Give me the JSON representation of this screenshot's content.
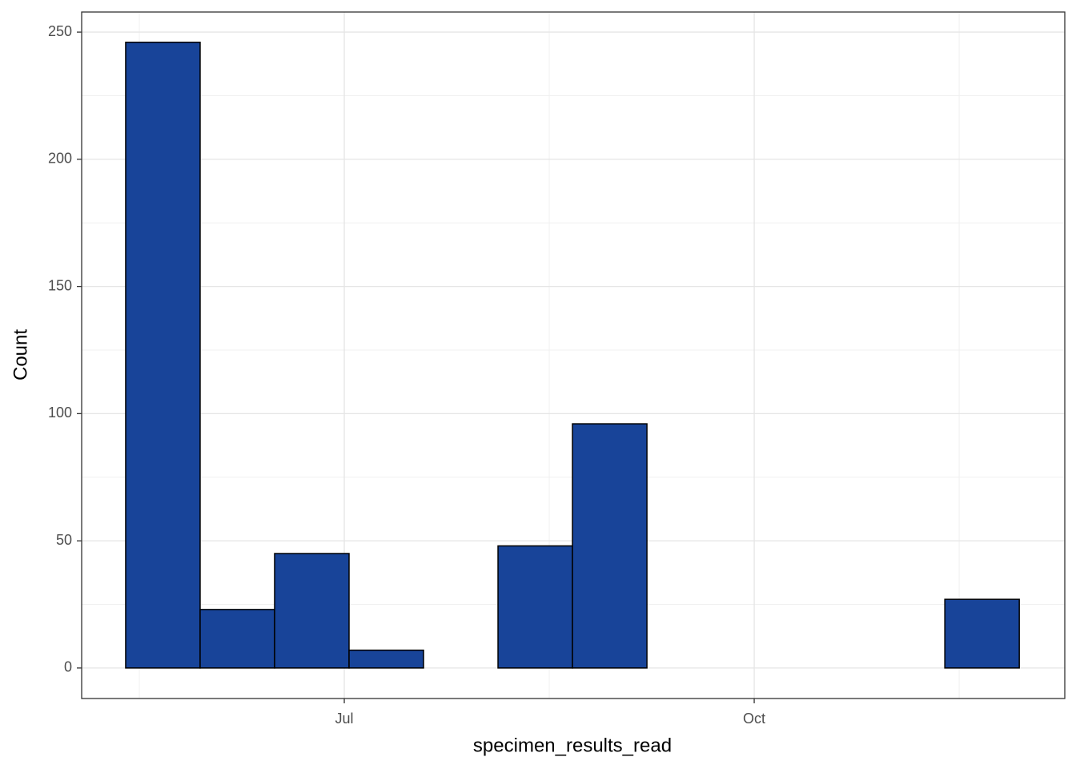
{
  "chart_data": {
    "type": "histogram",
    "x_label": "specimen_results_read",
    "y_label": "Count",
    "bins": [
      5.4,
      5.945,
      6.49,
      7.035,
      7.58,
      8.125,
      8.67,
      9.215,
      9.76,
      10.305,
      10.85,
      11.395,
      11.94
    ],
    "values": [
      246,
      23,
      45,
      7,
      0,
      48,
      96,
      0,
      0,
      0,
      0,
      27
    ],
    "color": "#184499",
    "edge_color": "#000000",
    "xlim": [
      5.078,
      12.273
    ],
    "ylim": [
      -12.0,
      257.9
    ],
    "xticks": [
      {
        "value": 7,
        "label": "Jul"
      },
      {
        "value": 10,
        "label": "Oct"
      }
    ],
    "yticks": [
      0,
      50,
      100,
      150,
      200,
      250
    ],
    "grid": true
  }
}
